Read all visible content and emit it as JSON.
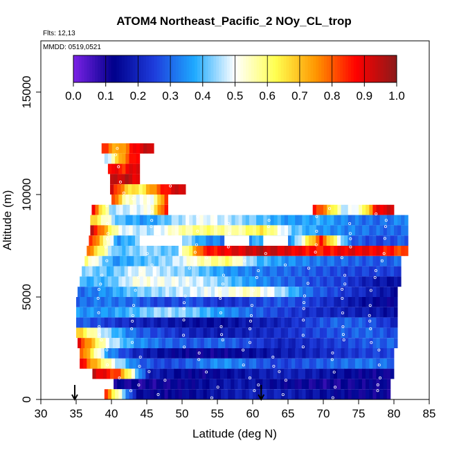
{
  "chart_data": {
    "type": "heatmap",
    "title": "ATOM4 Northeast_Pacific_2 NOy_CL_trop",
    "annotations": [
      "Flts: 12,13",
      "MMDD: 0519,0521"
    ],
    "xlabel": "Latitude (deg N)",
    "ylabel": "Altitude (m)",
    "xlim": [
      30,
      85
    ],
    "ylim": [
      0,
      17500
    ],
    "xticks": [
      30,
      35,
      40,
      45,
      50,
      55,
      60,
      65,
      70,
      75,
      80,
      85
    ],
    "yticks": [
      0,
      5000,
      10000,
      15000
    ],
    "colorbar": {
      "range": [
        0.0,
        1.0
      ],
      "ticks": [
        "0.0",
        "0.1",
        "0.2",
        "0.3",
        "0.4",
        "0.5",
        "0.6",
        "0.7",
        "0.8",
        "0.9",
        "1.0"
      ],
      "colors": [
        "#7b22e6",
        "#00008b",
        "#1e3cdc",
        "#1eaaff",
        "#ffffff",
        "#ffff50",
        "#ff9600",
        "#ff0000",
        "#8b1a1a"
      ]
    },
    "arrows_at_latitude": [
      34.8,
      61.2
    ],
    "bands": [
      {
        "alt": 12250,
        "lat_start": 38.6,
        "lat_end": 46.0,
        "values": [
          0.85,
          0.7,
          0.9,
          0.95
        ]
      },
      {
        "alt": 11750,
        "lat_start": 39.0,
        "lat_end": 44.0,
        "values": [
          0.4,
          0.75,
          0.92
        ]
      },
      {
        "alt": 11250,
        "lat_start": 39.5,
        "lat_end": 44.0,
        "values": [
          0.9,
          0.85,
          0.95
        ]
      },
      {
        "alt": 10750,
        "lat_start": 39.8,
        "lat_end": 44.0,
        "values": [
          0.92,
          0.95,
          0.9
        ]
      },
      {
        "alt": 10250,
        "lat_start": 39.8,
        "lat_end": 50.5,
        "values": [
          0.95,
          0.7,
          0.62,
          0.78,
          0.9,
          0.95
        ]
      },
      {
        "alt": 9750,
        "lat_start": 40.0,
        "lat_end": 48.0,
        "values": [
          0.88,
          0.55,
          0.5,
          0.52,
          0.9
        ]
      },
      {
        "alt": 9250,
        "lat_start": 37.2,
        "lat_end": 48.0,
        "values": [
          0.9,
          0.45,
          0.48,
          0.5,
          0.92
        ]
      },
      {
        "alt": 9250,
        "lat_start": 68.5,
        "lat_end": 80.0,
        "values": [
          0.9,
          0.7,
          0.45,
          0.55,
          0.9,
          0.92
        ]
      },
      {
        "alt": 8750,
        "lat_start": 37.0,
        "lat_end": 82.0,
        "values": [
          0.7,
          0.4,
          0.35,
          0.45,
          0.5,
          0.45,
          0.4,
          0.35,
          0.38,
          0.32,
          0.3,
          0.35
        ]
      },
      {
        "alt": 8250,
        "lat_start": 37.0,
        "lat_end": 82.0,
        "values": [
          0.95,
          0.5,
          0.45,
          0.55,
          0.6,
          0.55,
          0.65,
          0.42,
          0.35,
          0.33,
          0.3,
          0.3
        ]
      },
      {
        "alt": 7750,
        "lat_start": 36.8,
        "lat_end": 82.0,
        "values": [
          0.9,
          0.35,
          0.45,
          0.5,
          0.35,
          0.3,
          0.4,
          0.35,
          0.85,
          0.3,
          0.25,
          0.3
        ]
      },
      {
        "alt": 7250,
        "lat_start": 36.5,
        "lat_end": 82.0,
        "values": [
          0.8,
          0.4,
          0.45,
          0.4,
          0.85,
          0.9,
          0.95,
          0.9,
          0.85,
          0.9,
          0.88,
          0.8
        ]
      },
      {
        "alt": 6750,
        "lat_start": 36.2,
        "lat_end": 81.0,
        "values": [
          0.6,
          0.35,
          0.4,
          0.45,
          0.55,
          0.6,
          0.4,
          0.35,
          0.32,
          0.3,
          0.28,
          0.3
        ]
      },
      {
        "alt": 6250,
        "lat_start": 35.8,
        "lat_end": 81.0,
        "values": [
          0.45,
          0.4,
          0.5,
          0.45,
          0.42,
          0.35,
          0.32,
          0.3,
          0.28,
          0.26,
          0.25,
          0.25
        ]
      },
      {
        "alt": 5750,
        "lat_start": 35.5,
        "lat_end": 81.0,
        "values": [
          0.38,
          0.4,
          0.52,
          0.5,
          0.48,
          0.42,
          0.35,
          0.3,
          0.27,
          0.25,
          0.18,
          0.15
        ]
      },
      {
        "alt": 5250,
        "lat_start": 35.2,
        "lat_end": 80.5,
        "values": [
          0.3,
          0.35,
          0.42,
          0.45,
          0.48,
          0.5,
          0.55,
          0.45,
          0.3,
          0.25,
          0.2,
          0.15
        ]
      },
      {
        "alt": 4750,
        "lat_start": 35.0,
        "lat_end": 80.5,
        "values": [
          0.3,
          0.32,
          0.3,
          0.25,
          0.28,
          0.22,
          0.25,
          0.28,
          0.25,
          0.2,
          0.15,
          0.12
        ]
      },
      {
        "alt": 4250,
        "lat_start": 35.0,
        "lat_end": 80.5,
        "values": [
          0.35,
          0.35,
          0.4,
          0.45,
          0.42,
          0.35,
          0.3,
          0.25,
          0.22,
          0.2,
          0.18,
          0.15
        ]
      },
      {
        "alt": 3750,
        "lat_start": 35.0,
        "lat_end": 80.5,
        "values": [
          0.3,
          0.25,
          0.2,
          0.18,
          0.15,
          0.15,
          0.18,
          0.2,
          0.25,
          0.3,
          0.28,
          0.2
        ]
      },
      {
        "alt": 3250,
        "lat_start": 35.0,
        "lat_end": 80.5,
        "values": [
          0.7,
          0.45,
          0.3,
          0.25,
          0.2,
          0.18,
          0.2,
          0.22,
          0.25,
          0.28,
          0.3,
          0.25
        ]
      },
      {
        "alt": 2750,
        "lat_start": 35.2,
        "lat_end": 80.5,
        "values": [
          0.9,
          0.5,
          0.35,
          0.3,
          0.28,
          0.3,
          0.25,
          0.2,
          0.22,
          0.25,
          0.28,
          0.3
        ]
      },
      {
        "alt": 2250,
        "lat_start": 35.5,
        "lat_end": 80.0,
        "values": [
          0.85,
          0.35,
          0.2,
          0.15,
          0.12,
          0.12,
          0.15,
          0.18,
          0.2,
          0.22,
          0.25,
          0.25
        ]
      },
      {
        "alt": 1750,
        "lat_start": 35.5,
        "lat_end": 80.0,
        "values": [
          0.9,
          0.55,
          0.3,
          0.25,
          0.3,
          0.35,
          0.3,
          0.25,
          0.28,
          0.3,
          0.32,
          0.3
        ]
      },
      {
        "alt": 1250,
        "lat_start": 37.3,
        "lat_end": 80.0,
        "values": [
          0.95,
          0.8,
          0.2,
          0.15,
          0.12,
          0.15,
          0.18,
          0.2,
          0.18,
          0.15,
          0.12,
          0.12
        ]
      },
      {
        "alt": 750,
        "lat_start": 40.3,
        "lat_end": 79.5,
        "values": [
          0.12,
          0.1,
          0.12,
          0.15,
          0.18,
          0.15,
          0.12,
          0.1,
          0.12,
          0.12
        ]
      },
      {
        "alt": 250,
        "lat_start": 39.0,
        "lat_end": 79.5,
        "values": [
          0.85,
          0.15,
          0.12,
          0.15,
          0.18,
          0.2,
          0.18,
          0.15,
          0.12,
          0.12
        ]
      }
    ],
    "gaps": [
      {
        "alt": 7750,
        "lat_start": 44.0,
        "lat_end": 50.0
      },
      {
        "alt": 7750,
        "lat_start": 56.0,
        "lat_end": 59.5
      },
      {
        "alt": 7750,
        "lat_start": 61.5,
        "lat_end": 65.0
      }
    ]
  }
}
